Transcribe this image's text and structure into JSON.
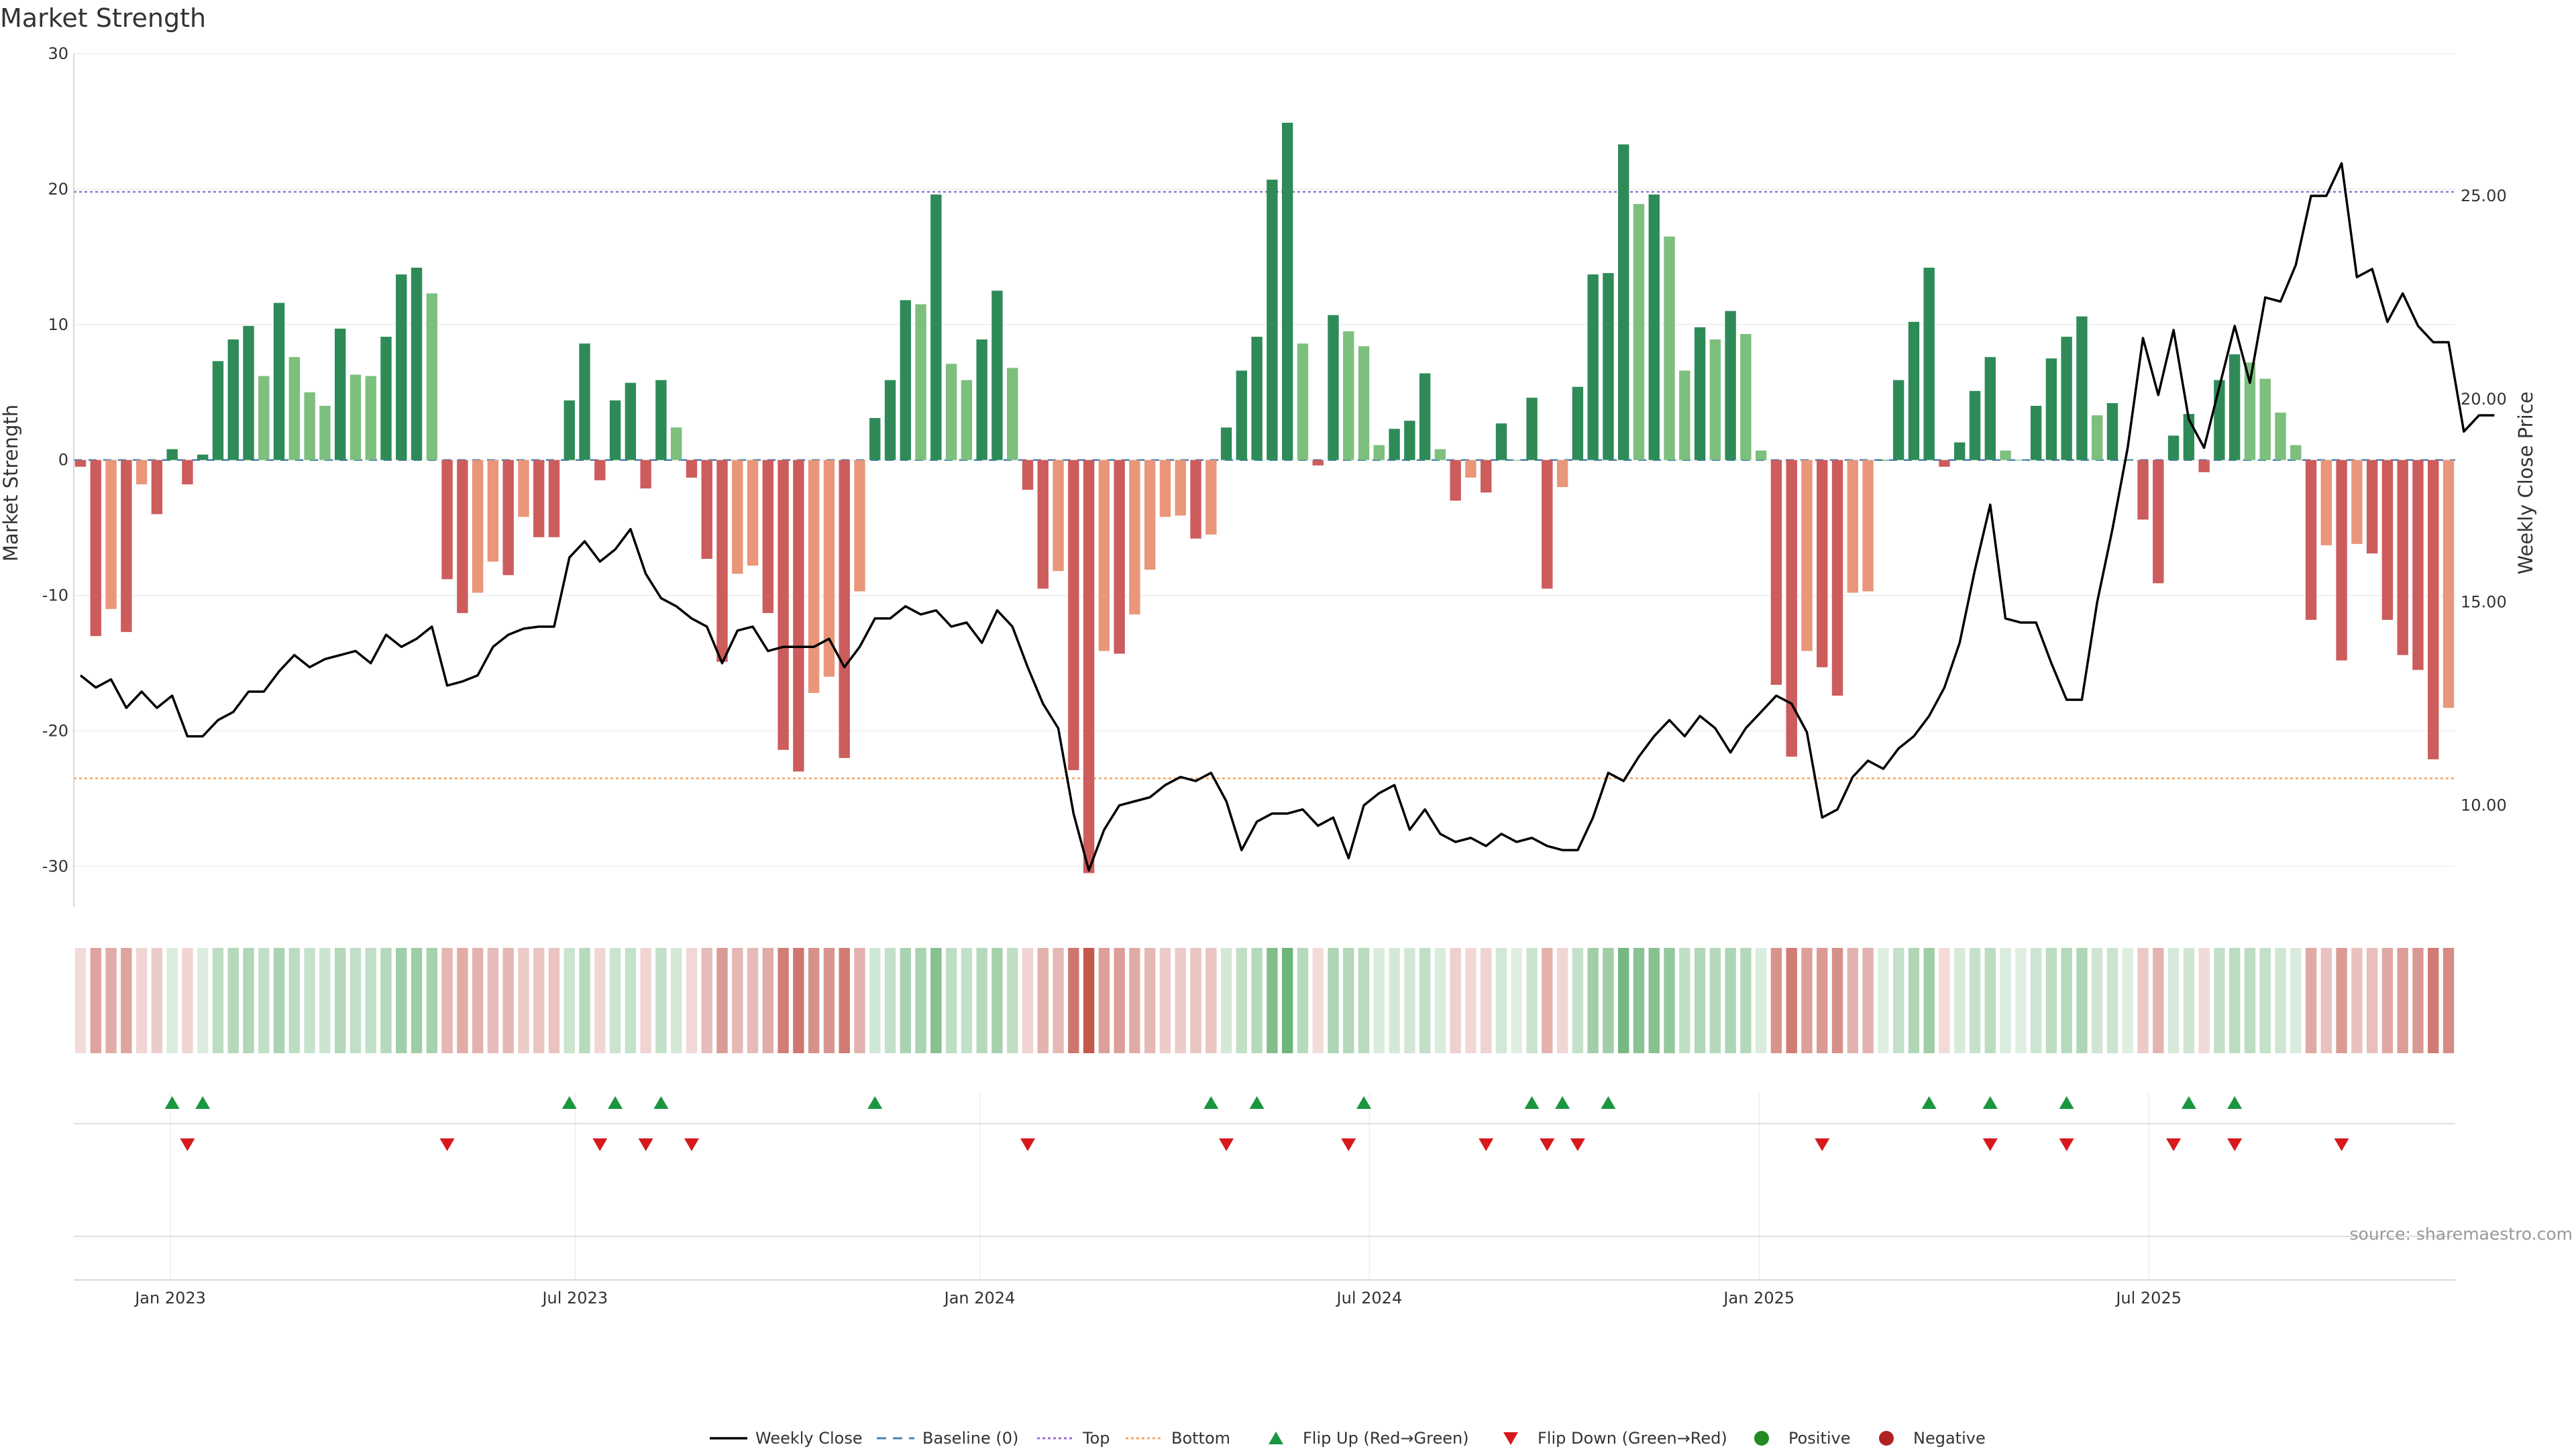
{
  "chart_data": {
    "type": "bar",
    "title": "Market Strength",
    "ylabel": "Market Strength",
    "y2label": "Weekly Close Price",
    "ylim": [
      -33,
      30
    ],
    "y2lim": [
      7.5,
      28.5
    ],
    "yticks": [
      30,
      20,
      10,
      0,
      -10,
      -20,
      -30
    ],
    "y2ticks": [
      "25.00",
      "20.00",
      "15.00",
      "10.00"
    ],
    "y2tick_values": [
      25,
      20,
      15,
      10
    ],
    "x_start": "2022-11-14",
    "x_end": "2025-11-24",
    "xticks": [
      {
        "date": "2022-12-26",
        "label": "Jan 2023"
      },
      {
        "date": "2023-07-03",
        "label": "Jul 2023"
      },
      {
        "date": "2024-01-08",
        "label": "Jan 2024"
      },
      {
        "date": "2024-07-08",
        "label": "Jul 2024"
      },
      {
        "date": "2025-01-06",
        "label": "Jan 2025"
      },
      {
        "date": "2025-07-07",
        "label": "Jul 2025"
      }
    ],
    "top": 19.8,
    "bottom": -23.5,
    "baseline": 0,
    "strength": [
      -0.5,
      -13,
      -11,
      -12.7,
      -1.8,
      -4,
      0.8,
      -1.8,
      0.4,
      7.3,
      8.9,
      9.9,
      6.2,
      11.6,
      7.6,
      5,
      4,
      9.7,
      6.3,
      6.2,
      9.1,
      13.7,
      14.2,
      12.3,
      -8.8,
      -11.3,
      -9.8,
      -7.5,
      -8.5,
      -4.2,
      -5.7,
      -5.7,
      4.4,
      8.6,
      -1.5,
      4.4,
      5.7,
      -2.1,
      5.9,
      2.4,
      -1.3,
      -7.3,
      -14.9,
      -8.4,
      -7.8,
      -11.3,
      -21.4,
      -23,
      -17.2,
      -16,
      -22,
      -9.7,
      3.1,
      5.9,
      11.8,
      11.5,
      19.6,
      7.1,
      5.9,
      8.9,
      12.5,
      6.8,
      -2.2,
      -9.5,
      -8.2,
      -22.9,
      -30.5,
      -14.1,
      -14.3,
      -11.4,
      -8.1,
      -4.2,
      -4.1,
      -5.8,
      -5.5,
      2.4,
      6.6,
      9.1,
      20.7,
      24.9,
      8.6,
      -0.4,
      10.7,
      9.5,
      8.4,
      1.1,
      2.3,
      2.9,
      6.4,
      0.8,
      -3,
      -1.3,
      -2.4,
      2.7,
      0,
      4.6,
      -9.5,
      -2,
      5.4,
      13.7,
      13.8,
      23.3,
      18.9,
      19.6,
      16.5,
      6.6,
      9.8,
      8.9,
      11,
      9.3,
      0.7,
      -16.6,
      -21.9,
      -14.1,
      -15.3,
      -17.4,
      -9.8,
      -9.7,
      0,
      5.9,
      10.2,
      14.2,
      -0.5,
      1.3,
      5.1,
      7.6,
      0.7,
      0,
      4,
      7.5,
      9.1,
      10.6,
      3.3,
      4.2,
      0,
      -4.4,
      -9.1,
      1.8,
      3.4,
      -0.9,
      5.9,
      7.8,
      7.2,
      6,
      3.5,
      1.1,
      -11.8,
      -6.3,
      -14.8,
      -6.2,
      -6.9,
      -11.8,
      -14.4,
      -15.5,
      -22.1,
      -18.3
    ],
    "series": [
      {
        "name": "Weekly Close",
        "values": [
          13.2,
          12.9,
          13.1,
          12.4,
          12.8,
          12.4,
          12.7,
          11.7,
          11.7,
          12.1,
          12.3,
          12.8,
          12.8,
          13.3,
          13.7,
          13.4,
          13.6,
          13.7,
          13.8,
          13.5,
          14.2,
          13.9,
          14.1,
          14.4,
          12.95,
          13.05,
          13.2,
          13.9,
          14.2,
          14.35,
          14.4,
          14.4,
          16.1,
          16.5,
          16.0,
          16.3,
          16.8,
          15.7,
          15.1,
          14.9,
          14.6,
          14.4,
          13.5,
          14.3,
          14.4,
          13.8,
          13.9,
          13.9,
          13.9,
          14.1,
          13.4,
          13.9,
          14.6,
          14.6,
          14.9,
          14.7,
          14.8,
          14.4,
          14.5,
          14.0,
          14.8,
          14.4,
          13.4,
          12.5,
          11.9,
          9.8,
          8.4,
          9.4,
          10.0,
          10.1,
          10.2,
          10.5,
          10.7,
          10.6,
          10.8,
          10.1,
          8.9,
          9.6,
          9.8,
          9.8,
          9.9,
          9.5,
          9.7,
          8.7,
          10.0,
          10.3,
          10.5,
          9.4,
          9.9,
          9.3,
          9.1,
          9.2,
          9.0,
          9.3,
          9.1,
          9.2,
          9.0,
          8.9,
          8.9,
          9.7,
          10.8,
          10.6,
          11.2,
          11.7,
          12.1,
          11.7,
          12.2,
          11.9,
          11.3,
          11.9,
          12.3,
          12.7,
          12.5,
          11.8,
          9.7,
          9.9,
          10.7,
          11.1,
          10.9,
          11.4,
          11.7,
          12.2,
          12.9,
          14.0,
          15.8,
          17.4,
          14.6,
          14.5,
          14.5,
          13.5,
          12.6,
          12.6,
          15.0,
          16.8,
          18.8,
          21.5,
          20.1,
          21.7,
          19.5,
          18.8,
          20.3,
          21.8,
          20.4,
          22.5,
          22.4,
          23.3,
          25.0,
          25.0,
          25.8,
          23.0,
          23.2,
          21.9,
          22.6,
          21.8,
          21.4,
          21.4,
          19.2,
          19.6,
          19.6
        ]
      }
    ],
    "flip_up_index": [
      6,
      8,
      32,
      35,
      38,
      52,
      74,
      77,
      84,
      95,
      97,
      100,
      121,
      125,
      130,
      138,
      141
    ],
    "flip_down_index": [
      7,
      24,
      34,
      37,
      40,
      62,
      75,
      83,
      92,
      96,
      98,
      114,
      125,
      130,
      137,
      141,
      148
    ],
    "legend_position": "bottom",
    "source": "source: sharemaestro.com",
    "legend": [
      {
        "label": "Weekly Close",
        "symbol": "line"
      },
      {
        "label": "Baseline (0)",
        "symbol": "dash"
      },
      {
        "label": "Top",
        "symbol": "dotted"
      },
      {
        "label": "Bottom",
        "symbol": "dotted"
      },
      {
        "label": "Flip Up (Red→Green)",
        "symbol": "triangle-up"
      },
      {
        "label": "Flip Down (Green→Red)",
        "symbol": "triangle-down"
      },
      {
        "label": "Positive",
        "symbol": "circle"
      },
      {
        "label": "Negative",
        "symbol": "circle"
      }
    ],
    "colors": {
      "pos_dark": "#2e8b57",
      "pos_light": "#7dbf7d",
      "neg_dark": "#cd5c5c",
      "neg_light": "#e9967a",
      "price": "#000000",
      "baseline": "#4682b4",
      "top": "#9370db",
      "bottom": "#f4a460",
      "flip_up": "#1a9641",
      "flip_down": "#d7191c",
      "positive_dot": "#228b22",
      "negative_dot": "#b22222"
    }
  }
}
